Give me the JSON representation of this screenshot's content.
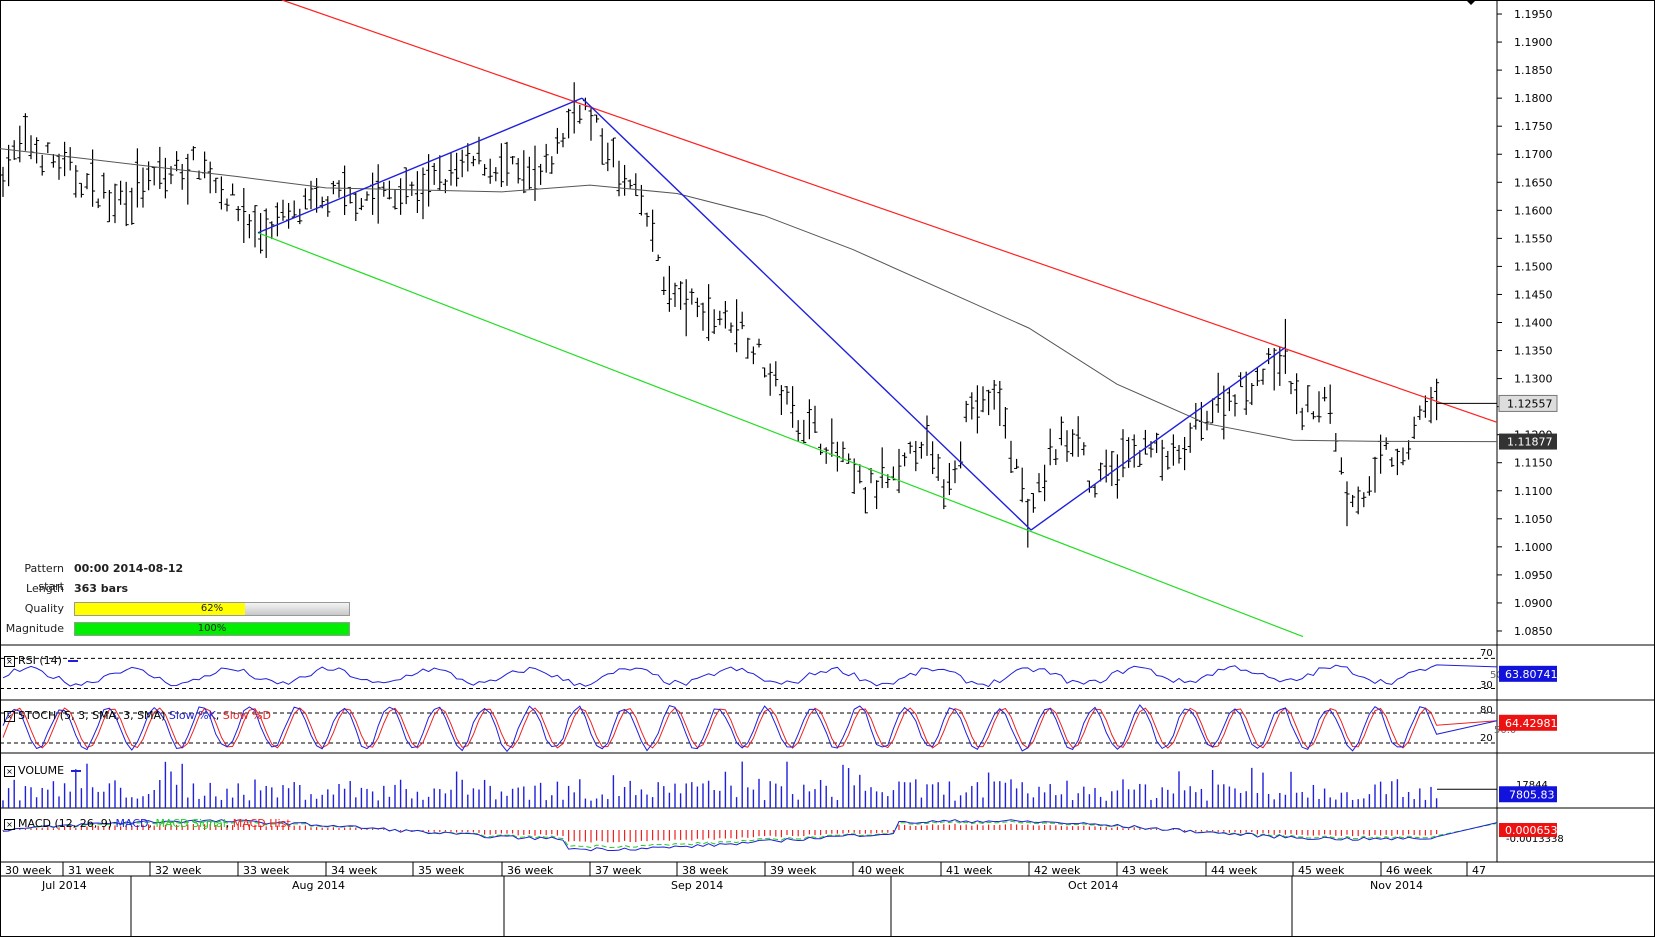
{
  "price_axis": {
    "ticks": [
      "1.1950",
      "1.1900",
      "1.1850",
      "1.1800",
      "1.1750",
      "1.1700",
      "1.1650",
      "1.1600",
      "1.1550",
      "1.1500",
      "1.1450",
      "1.1400",
      "1.1350",
      "1.1300",
      "1.1250",
      "1.1200",
      "1.1150",
      "1.1100",
      "1.1050",
      "1.1000",
      "1.0950",
      "1.0900",
      "1.0850"
    ],
    "last_price_label": "1.12557",
    "ma_label": "1.11877"
  },
  "pattern_info": {
    "start_label": "Pattern start",
    "start_value": "00:00 2014-08-12",
    "length_label": "Length",
    "length_value": "363 bars",
    "quality_label": "Quality",
    "quality_text": "62%",
    "quality_value": 62,
    "magnitude_label": "Magnitude",
    "magnitude_text": "100%",
    "magnitude_value": 100
  },
  "indicators": {
    "rsi": {
      "legend_name": "RSI (14)",
      "levels": [
        "70",
        "30"
      ],
      "hidden_tick": "50.99",
      "value_label": "63.80741"
    },
    "stoch": {
      "legend_prefix": "STOCH (5, 3, SMA, 3, SMA)",
      "slow_k": "Slow %K",
      "slow_d": "Slow %D",
      "levels": [
        "80",
        "20"
      ],
      "hidden_tick": "50.0",
      "value_label": "64.42981"
    },
    "volume": {
      "legend_name": "VOLUME",
      "tick": "17844",
      "value_label": "7805.83"
    },
    "macd": {
      "legend_prefix": "MACD (12, 26, 9)",
      "macd": "MACD",
      "signal": "MACD Signal",
      "hist": "MACD Hist",
      "tick": "-0.0013338",
      "value_label": "0.0006534"
    }
  },
  "time_axis": {
    "weeks": [
      "30 week",
      "31 week",
      "32 week",
      "33 week",
      "34 week",
      "35 week",
      "36 week",
      "37 week",
      "38 week",
      "39 week",
      "40 week",
      "41 week",
      "42 week",
      "43 week",
      "44 week",
      "45 week",
      "46 week",
      "47"
    ],
    "months": [
      "Jul 2014",
      "Aug 2014",
      "Sep 2014",
      "Oct 2014",
      "Nov 2014"
    ]
  },
  "colors": {
    "resistance": "#ff2020",
    "support": "#22dd22",
    "zigzag": "#1f1fdd",
    "ma": "#555555",
    "quality_fill": "#ffff00",
    "magnitude_fill": "#00ee00",
    "rsi_line": "#1f1fdd",
    "stoch_k": "#1f1fdd",
    "stoch_d": "#ee2222",
    "macd_line": "#1f1fdd",
    "macd_signal": "#22cc22",
    "macd_hist": "#ee2222",
    "last_price_box": "#dddddd",
    "ma_box": "#333333",
    "value_box_blue": "#1212dd",
    "value_box_red": "#ee1111"
  },
  "chart_data": {
    "type": "candlestick",
    "instrument_scale": {
      "ylim": [
        1.0825,
        1.1975
      ],
      "y_ticks": [
        1.195,
        1.19,
        1.185,
        1.18,
        1.175,
        1.17,
        1.165,
        1.16,
        1.155,
        1.15,
        1.145,
        1.14,
        1.135,
        1.13,
        1.125,
        1.12,
        1.115,
        1.11,
        1.105,
        1.1,
        1.095,
        1.09,
        1.085
      ]
    },
    "price_path_weekly": [
      {
        "week": "30",
        "close": 1.1695
      },
      {
        "week": "31",
        "close": 1.1615
      },
      {
        "week": "32",
        "close": 1.163
      },
      {
        "week": "33",
        "close": 1.159
      },
      {
        "week": "34",
        "close": 1.162
      },
      {
        "week": "35",
        "close": 1.164
      },
      {
        "week": "36",
        "close": 1.168
      },
      {
        "week": "37",
        "close": 1.17
      },
      {
        "week": "38",
        "close": 1.142
      },
      {
        "week": "39",
        "close": 1.126
      },
      {
        "week": "40",
        "close": 1.112
      },
      {
        "week": "41",
        "close": 1.124
      },
      {
        "week": "42",
        "close": 1.11
      },
      {
        "week": "43",
        "close": 1.118
      },
      {
        "week": "44",
        "close": 1.126
      },
      {
        "week": "45",
        "close": 1.121
      },
      {
        "week": "46",
        "close": 1.1256
      }
    ],
    "moving_average_points": [
      {
        "week": "30",
        "value": 1.171
      },
      {
        "week": "33",
        "value": 1.166
      },
      {
        "week": "34",
        "value": 1.164
      },
      {
        "week": "36",
        "value": 1.1633
      },
      {
        "week": "37",
        "value": 1.1645
      },
      {
        "week": "38",
        "value": 1.163
      },
      {
        "week": "39",
        "value": 1.159
      },
      {
        "week": "40",
        "value": 1.153
      },
      {
        "week": "41",
        "value": 1.146
      },
      {
        "week": "42",
        "value": 1.139
      },
      {
        "week": "43",
        "value": 1.129
      },
      {
        "week": "44",
        "value": 1.122
      },
      {
        "week": "45",
        "value": 1.119
      },
      {
        "week": "46",
        "value": 1.1188
      }
    ],
    "zigzag_pivots": [
      {
        "week": "33",
        "price": 1.156
      },
      {
        "week": "37",
        "price": 1.18
      },
      {
        "week": "42",
        "price": 1.103
      },
      {
        "week": "44",
        "price": 1.1355
      }
    ],
    "resistance_line": [
      {
        "week": "33",
        "price": 1.1975
      },
      {
        "week": "47",
        "price": 1.1222
      }
    ],
    "support_line": [
      {
        "week": "33",
        "price": 1.156
      },
      {
        "week": "45",
        "price": 1.084
      }
    ],
    "last_price": 1.12557,
    "ma_last": 1.11877,
    "rsi_last": 63.80741,
    "stoch_last": 64.42981,
    "volume_last": 7805.83,
    "macd_last": 0.0006534
  }
}
